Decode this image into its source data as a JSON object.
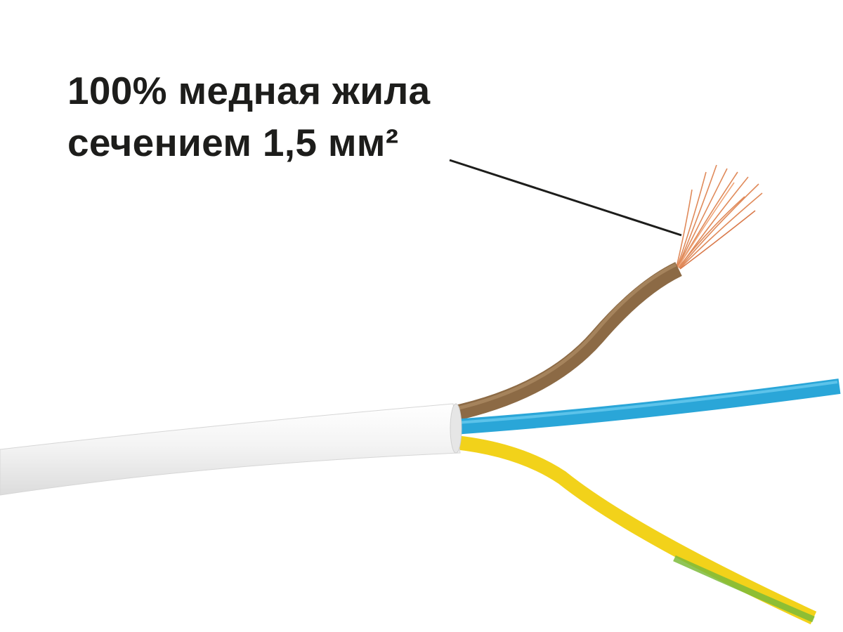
{
  "caption": {
    "line1": "100% медная жила",
    "line2": "сечением 1,5 мм²"
  },
  "colors": {
    "text": "#1d1d1b",
    "jacket": "#f2f2f2",
    "brown_wire": "#8c6a45",
    "blue_wire": "#2aa6d8",
    "yellow_wire": "#f2d21a",
    "green_stripe": "#7dbb3a",
    "copper": "#e08a5a"
  }
}
